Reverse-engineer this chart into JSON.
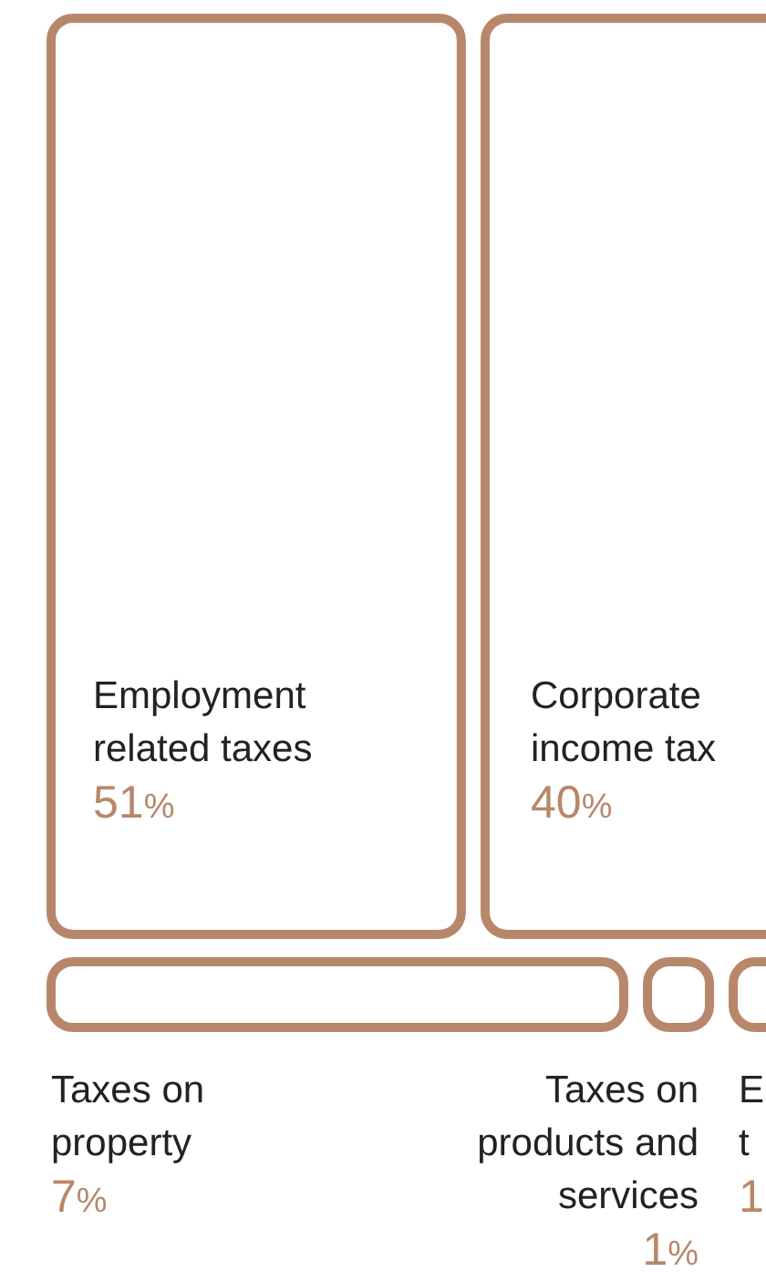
{
  "chart_data": {
    "type": "other",
    "categories": [
      "Employment\nrelated taxes",
      "Corporate\nincome tax",
      "Taxes on\nproperty",
      "Taxes on\nproducts and\nservices",
      "E\nt"
    ],
    "values": [
      51,
      40,
      7,
      1,
      1
    ],
    "value_labels": [
      "51%",
      "40%",
      "7%",
      "1%",
      "1"
    ],
    "color": "#b8876b"
  }
}
